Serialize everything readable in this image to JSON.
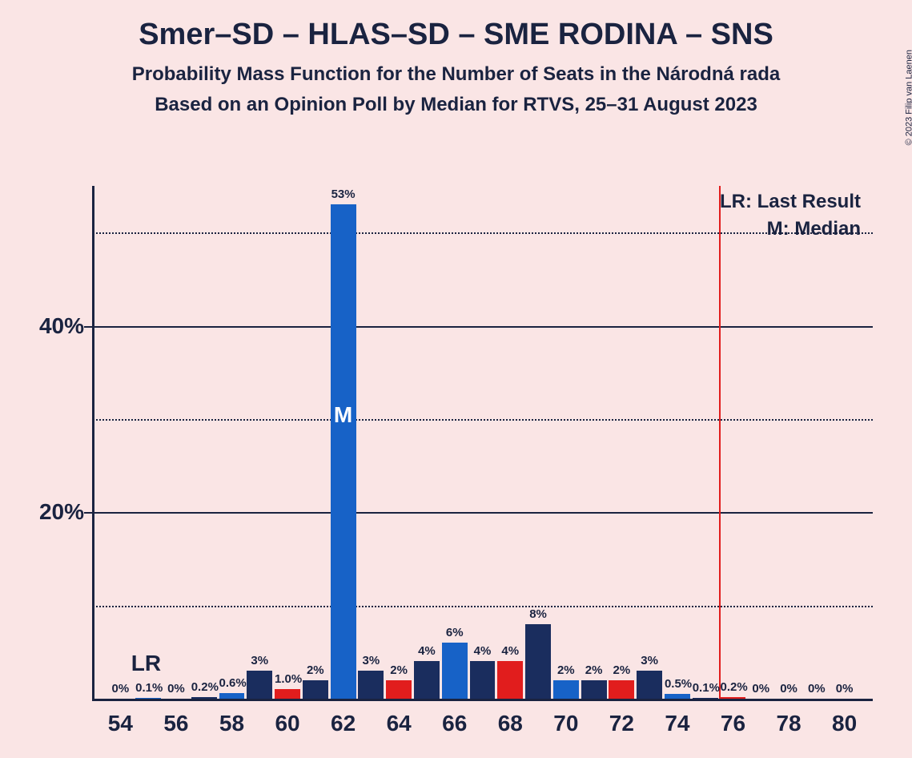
{
  "title": "Smer–SD – HLAS–SD – SME RODINA – SNS",
  "subtitle1": "Probability Mass Function for the Number of Seats in the Národná rada",
  "subtitle2": "Based on an Opinion Poll by Median for RTVS, 25–31 August 2023",
  "copyright": "© 2023 Filip van Laenen",
  "chart": {
    "type": "bar",
    "background_color": "#fae5e5",
    "text_color": "#1a2340",
    "colors": {
      "blue_dark": "#1a2d5e",
      "blue_mid": "#1762c7",
      "red": "#e11d1d"
    },
    "ylim": [
      0,
      55
    ],
    "y_ticks_solid": [
      20,
      40
    ],
    "y_ticks_dotted": [
      10,
      30,
      50
    ],
    "y_labels": [
      {
        "v": 20,
        "t": "20%"
      },
      {
        "v": 40,
        "t": "40%"
      }
    ],
    "x_range": [
      54,
      80
    ],
    "x_labels": [
      54,
      56,
      58,
      60,
      62,
      64,
      66,
      68,
      70,
      72,
      74,
      76,
      78,
      80
    ],
    "lr_label": "LR",
    "lr_seat": 55,
    "lr_line_x": 75.5,
    "median_seat": 62,
    "median_label": "M",
    "legend": {
      "lr": "LR: Last Result",
      "m": "M: Median"
    },
    "bars": [
      {
        "x": 54,
        "v": 0,
        "label": "0%",
        "c": "blue_dark"
      },
      {
        "x": 55,
        "v": 0.1,
        "label": "0.1%",
        "c": "blue_mid"
      },
      {
        "x": 56,
        "v": 0,
        "label": "0%",
        "c": "blue_dark"
      },
      {
        "x": 57,
        "v": 0.2,
        "label": "0.2%",
        "c": "blue_dark"
      },
      {
        "x": 58,
        "v": 0.6,
        "label": "0.6%",
        "c": "blue_mid"
      },
      {
        "x": 59,
        "v": 3,
        "label": "3%",
        "c": "blue_dark"
      },
      {
        "x": 60,
        "v": 1.0,
        "label": "1.0%",
        "c": "red"
      },
      {
        "x": 61,
        "v": 2,
        "label": "2%",
        "c": "blue_dark"
      },
      {
        "x": 62,
        "v": 53,
        "label": "53%",
        "c": "blue_mid",
        "median": true
      },
      {
        "x": 63,
        "v": 3,
        "label": "3%",
        "c": "blue_dark"
      },
      {
        "x": 64,
        "v": 2,
        "label": "2%",
        "c": "red"
      },
      {
        "x": 65,
        "v": 4,
        "label": "4%",
        "c": "blue_dark"
      },
      {
        "x": 66,
        "v": 6,
        "label": "6%",
        "c": "blue_mid"
      },
      {
        "x": 67,
        "v": 4,
        "label": "4%",
        "c": "blue_dark"
      },
      {
        "x": 68,
        "v": 4,
        "label": "4%",
        "c": "red"
      },
      {
        "x": 69,
        "v": 8,
        "label": "8%",
        "c": "blue_dark"
      },
      {
        "x": 70,
        "v": 2,
        "label": "2%",
        "c": "blue_mid"
      },
      {
        "x": 71,
        "v": 2,
        "label": "2%",
        "c": "blue_dark"
      },
      {
        "x": 72,
        "v": 2,
        "label": "2%",
        "c": "red"
      },
      {
        "x": 73,
        "v": 3,
        "label": "3%",
        "c": "blue_dark"
      },
      {
        "x": 74,
        "v": 0.5,
        "label": "0.5%",
        "c": "blue_mid"
      },
      {
        "x": 75,
        "v": 0.1,
        "label": "0.1%",
        "c": "blue_dark"
      },
      {
        "x": 76,
        "v": 0.2,
        "label": "0.2%",
        "c": "red"
      },
      {
        "x": 77,
        "v": 0,
        "label": "0%",
        "c": "blue_dark"
      },
      {
        "x": 78,
        "v": 0,
        "label": "0%",
        "c": "blue_mid"
      },
      {
        "x": 79,
        "v": 0,
        "label": "0%",
        "c": "blue_dark"
      },
      {
        "x": 80,
        "v": 0,
        "label": "0%",
        "c": "red"
      }
    ]
  }
}
